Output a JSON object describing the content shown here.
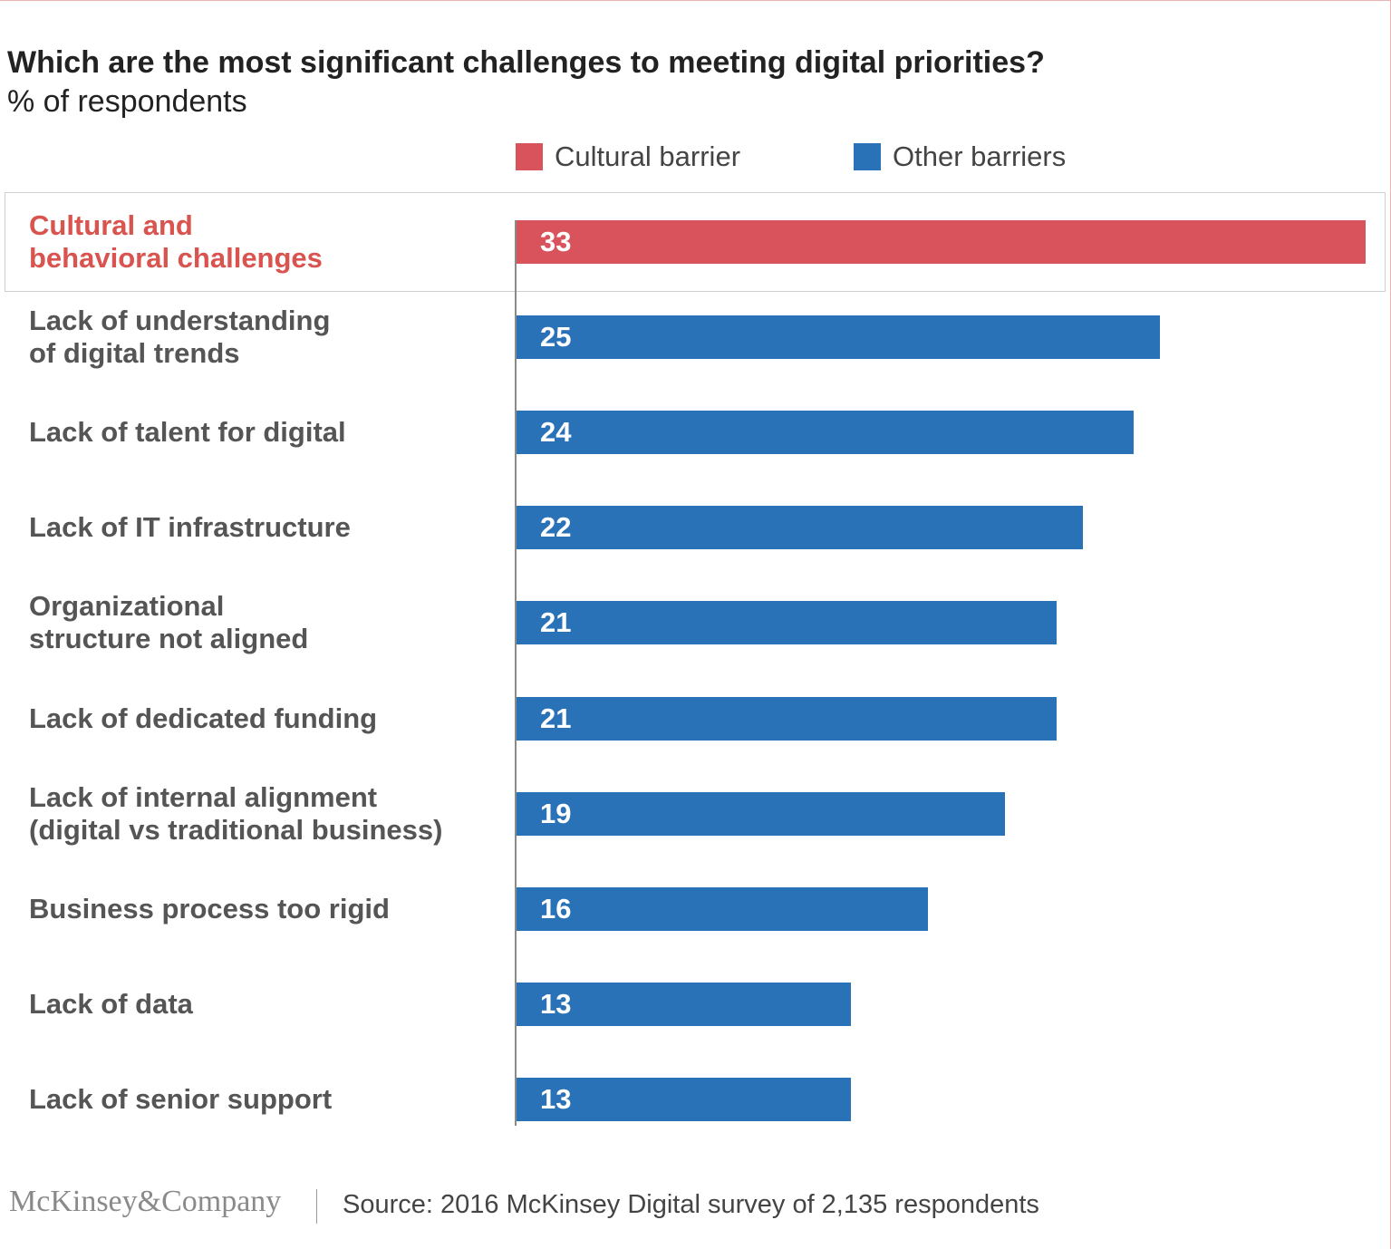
{
  "colors": {
    "cultural": "#d9535c",
    "other": "#2a72b8"
  },
  "chart_data": {
    "type": "bar",
    "orientation": "horizontal",
    "title": "Which are the most significant challenges to meeting digital priorities?",
    "subtitle": "% of respondents",
    "legend": [
      {
        "label": "Cultural barrier",
        "color": "#d9535c"
      },
      {
        "label": "Other barriers",
        "color": "#2a72b8"
      }
    ],
    "legend_placement": "top",
    "grid": false,
    "xlim": [
      0,
      33
    ],
    "categories": [
      [
        "Cultural and",
        "behavioral challenges"
      ],
      [
        "Lack of understanding",
        "of digital trends"
      ],
      [
        "Lack of talent for digital"
      ],
      [
        "Lack of IT infrastructure"
      ],
      [
        "Organizational",
        "structure not aligned"
      ],
      [
        "Lack of dedicated funding"
      ],
      [
        "Lack of internal alignment",
        "(digital vs traditional business)"
      ],
      [
        "Business process too rigid"
      ],
      [
        "Lack of data"
      ],
      [
        "Lack of senior support"
      ]
    ],
    "values": [
      33,
      25,
      24,
      22,
      21,
      21,
      19,
      16,
      13,
      13
    ],
    "groups": [
      "cultural",
      "other",
      "other",
      "other",
      "other",
      "other",
      "other",
      "other",
      "other",
      "other"
    ]
  },
  "footer": {
    "logo": "McKinsey&Company",
    "source": "Source: 2016 McKinsey Digital survey of 2,135 respondents"
  }
}
